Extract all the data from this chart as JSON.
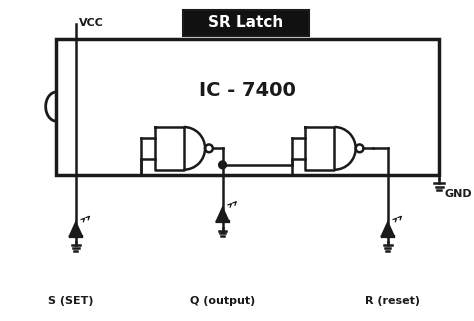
{
  "title": "SR Latch",
  "ic_label": "IC - 7400",
  "vcc_label": "VCC",
  "gnd_label": "GND",
  "s_label": "S (SET)",
  "r_label": "R (reset)",
  "q_label": "Q (output)",
  "bg_color": "#ffffff",
  "line_color": "#1a1a1a",
  "title_bg": "#111111",
  "title_fg": "#ffffff"
}
